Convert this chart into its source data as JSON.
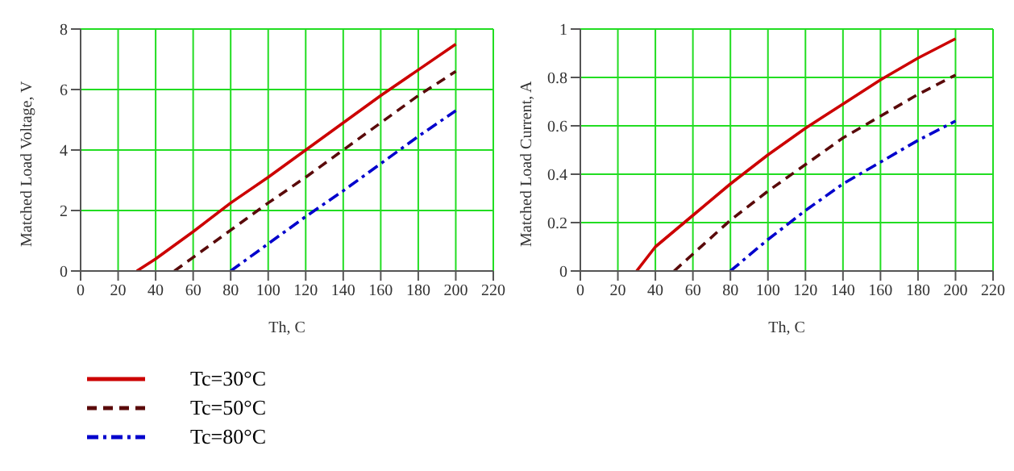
{
  "chart_data": [
    {
      "type": "line",
      "xlabel": "Th, C",
      "ylabel": "Matched Load Voltage, V",
      "xlim": [
        0,
        220
      ],
      "xticks": [
        0,
        20,
        40,
        60,
        80,
        100,
        120,
        140,
        160,
        180,
        200,
        220
      ],
      "ylim": [
        0,
        8
      ],
      "yticks": [
        0,
        2,
        4,
        6,
        8
      ],
      "grid": true,
      "legend": "bottom",
      "series": [
        {
          "name": "Tc=30°C",
          "color": "#cc0000",
          "line_style": "solid",
          "x": [
            30,
            40,
            60,
            80,
            100,
            120,
            140,
            160,
            180,
            200
          ],
          "values": [
            0,
            0.4,
            1.3,
            2.25,
            3.1,
            4.0,
            4.9,
            5.8,
            6.65,
            7.5
          ]
        },
        {
          "name": "Tc=50°C",
          "color": "#5a0a0a",
          "line_style": "dashed",
          "x": [
            50,
            60,
            80,
            100,
            120,
            140,
            160,
            180,
            200
          ],
          "values": [
            0,
            0.45,
            1.35,
            2.25,
            3.1,
            4.0,
            4.9,
            5.8,
            6.6
          ]
        },
        {
          "name": "Tc=80°C",
          "color": "#0000cc",
          "line_style": "dotted",
          "x": [
            80,
            100,
            120,
            140,
            160,
            180,
            200
          ],
          "values": [
            0,
            0.9,
            1.8,
            2.65,
            3.55,
            4.45,
            5.3
          ]
        }
      ]
    },
    {
      "type": "line",
      "xlabel": "Th, C",
      "ylabel": "Matched Load Current, A",
      "xlim": [
        0,
        220
      ],
      "xticks": [
        0,
        20,
        40,
        60,
        80,
        100,
        120,
        140,
        160,
        180,
        200,
        220
      ],
      "ylim": [
        0,
        1
      ],
      "yticks": [
        0,
        0.2,
        0.4,
        0.6,
        0.8,
        1
      ],
      "grid": true,
      "series": [
        {
          "color": "#cc0000",
          "line_style": "solid",
          "x": [
            30,
            40,
            60,
            80,
            100,
            120,
            140,
            160,
            180,
            200
          ],
          "values": [
            0,
            0.1,
            0.23,
            0.36,
            0.48,
            0.59,
            0.69,
            0.79,
            0.88,
            0.96
          ]
        },
        {
          "color": "#5a0a0a",
          "line_style": "dashed",
          "x": [
            50,
            60,
            80,
            100,
            120,
            140,
            160,
            180,
            200
          ],
          "values": [
            0,
            0.07,
            0.21,
            0.33,
            0.44,
            0.55,
            0.64,
            0.73,
            0.81
          ]
        },
        {
          "color": "#0000cc",
          "line_style": "dotted",
          "x": [
            80,
            100,
            120,
            140,
            160,
            180,
            200
          ],
          "values": [
            0,
            0.13,
            0.25,
            0.36,
            0.45,
            0.54,
            0.62
          ]
        }
      ]
    }
  ]
}
